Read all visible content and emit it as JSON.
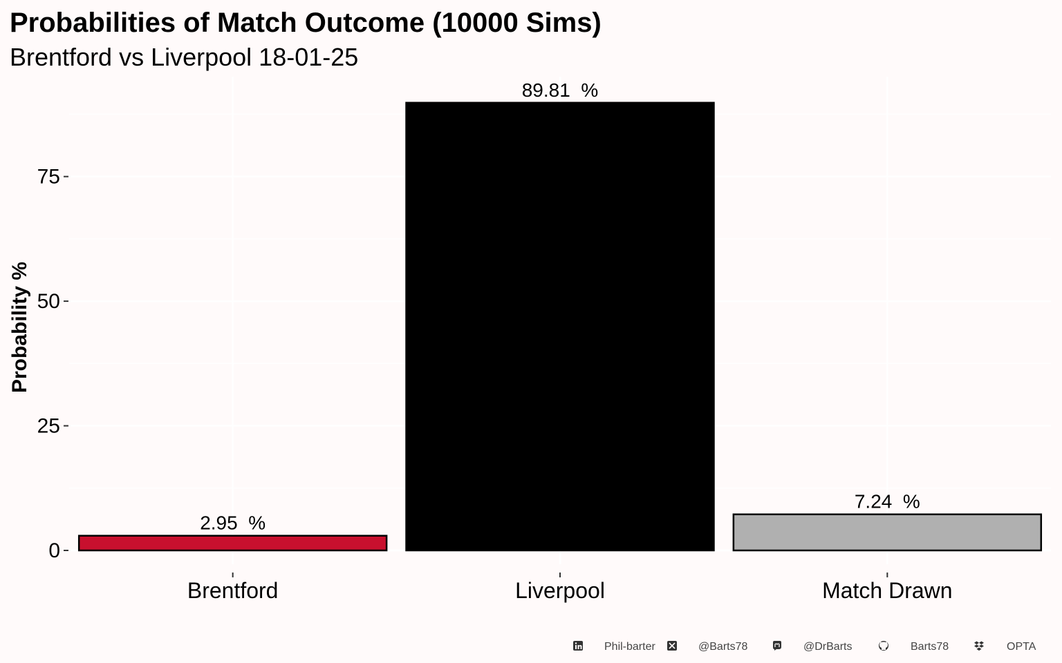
{
  "chart_data": {
    "type": "bar",
    "title": "Probabilities of Match Outcome (10000 Sims)",
    "subtitle": "Brentford vs Liverpool 18-01-25",
    "xlabel": "",
    "ylabel": "Probability %",
    "categories": [
      "Brentford",
      "Liverpool",
      "Match Drawn"
    ],
    "values": [
      2.95,
      89.81,
      7.24
    ],
    "data_labels": [
      "2.95  %",
      "89.81  %",
      "7.24  %"
    ],
    "bar_colors": [
      "#c8102e",
      "#000000",
      "#b0b0b0"
    ],
    "ylim": [
      0,
      95
    ],
    "yticks": [
      0,
      25,
      50,
      75
    ],
    "ytick_labels": [
      "0",
      "25",
      "50",
      "75"
    ],
    "grid": true,
    "legend": "none"
  },
  "caption": {
    "items": [
      {
        "icon": "linkedin-icon",
        "text": "Phil-barter"
      },
      {
        "icon": "x-twitter-icon",
        "text": "@Barts78"
      },
      {
        "icon": "mastodon-icon",
        "text": "@DrBarts"
      },
      {
        "icon": "github-icon",
        "text": "Barts78"
      },
      {
        "icon": "dropbox-icon",
        "text": "OPTA"
      }
    ]
  },
  "colors": {
    "background": "#fffafa",
    "grid": "#ffffff",
    "text": "#000000",
    "caption_text": "#444444"
  }
}
